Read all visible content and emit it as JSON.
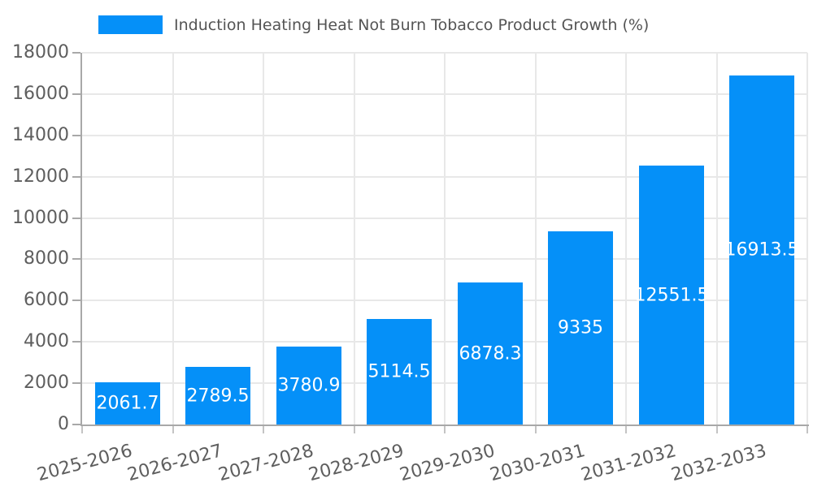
{
  "legend": {
    "label": "Induction Heating Heat Not Burn Tobacco Product Growth (%)"
  },
  "colors": {
    "bar": "#0590f8",
    "grid": "#e8e8e8",
    "axis": "#a8a8a8",
    "x_tick_mark": "#c4c4c4",
    "tick_label_text": "#5e5e5e",
    "bar_label_text": "#ffffff",
    "legend_text": "#545454",
    "background": "#ffffff"
  },
  "chart_data": {
    "type": "bar",
    "title": "Induction Heating Heat Not Burn Tobacco Product Growth (%)",
    "categories": [
      "2025-2026",
      "2026-2027",
      "2027-2028",
      "2028-2029",
      "2029-2030",
      "2030-2031",
      "2031-2032",
      "2032-2033"
    ],
    "values": [
      2061.7,
      2789.5,
      3780.9,
      5114.5,
      6878.3,
      9335,
      12551.5,
      16913.5
    ],
    "bar_value_labels": [
      "2061.7",
      "2789.5",
      "3780.9",
      "5114.5",
      "6878.3",
      "9335",
      "12551.5",
      "16913.5"
    ],
    "xlabel": "",
    "ylabel": "",
    "ylim": [
      0,
      18000
    ],
    "ytick_interval": 2000,
    "yticks": [
      0,
      2000,
      4000,
      6000,
      8000,
      10000,
      12000,
      14000,
      16000,
      18000
    ],
    "grid": true,
    "vertical_grid": true,
    "legend_position": "top-left",
    "value_label_position": "inside-center",
    "x_label_rotation_deg": -15
  }
}
